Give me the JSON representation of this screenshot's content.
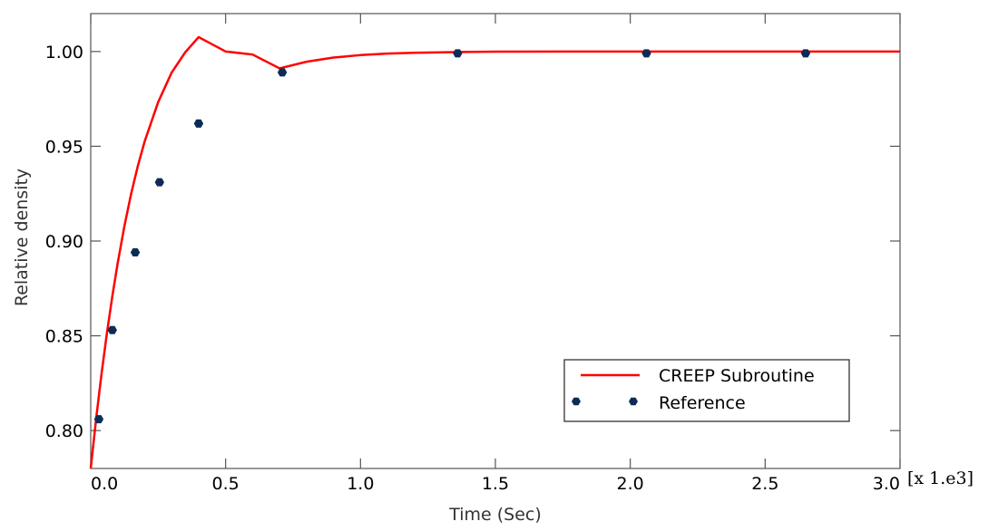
{
  "chart_data": {
    "type": "line",
    "xlabel": "Time (Sec)",
    "ylabel": "Relative density",
    "x_scale_label": "[x 1.e3]",
    "xlim": [
      0,
      3.0
    ],
    "ylim": [
      0.78,
      1.02
    ],
    "x_ticks": [
      0.0,
      0.5,
      1.0,
      1.5,
      2.0,
      2.5,
      3.0
    ],
    "x_tick_labels": [
      "0.0",
      "0.5",
      "1.0",
      "1.5",
      "2.0",
      "2.5",
      "3.0"
    ],
    "y_ticks": [
      0.8,
      0.85,
      0.9,
      0.95,
      1.0
    ],
    "y_tick_labels": [
      "0.80",
      "0.85",
      "0.90",
      "0.95",
      "1.00"
    ],
    "legend_position": "bottom-right",
    "series": [
      {
        "name": "CREEP Subroutine",
        "kind": "line",
        "color": "#ff0000",
        "x": [
          0.0,
          0.02,
          0.04,
          0.06,
          0.08,
          0.1,
          0.125,
          0.15,
          0.175,
          0.2,
          0.25,
          0.3,
          0.35,
          0.4,
          0.5,
          0.6,
          0.7,
          0.8,
          0.9,
          1.0,
          1.1,
          1.2,
          1.35,
          1.5,
          1.75,
          2.0,
          2.5,
          3.0
        ],
        "y": [
          0.78,
          0.8062,
          0.8299,
          0.8514,
          0.8708,
          0.8884,
          0.908,
          0.9251,
          0.9398,
          0.9526,
          0.9733,
          0.9889,
          0.9995,
          1.0076,
          1.0,
          0.9984,
          0.9911,
          0.9946,
          0.9968,
          0.9981,
          0.9989,
          0.9993,
          0.9997,
          0.9999,
          1.0,
          1.0,
          1.0,
          1.0
        ]
      },
      {
        "name": "Reference",
        "kind": "scatter",
        "color": "#0d2c55",
        "x": [
          0.03,
          0.08,
          0.165,
          0.255,
          0.4,
          0.71,
          1.36,
          2.06,
          2.65
        ],
        "y": [
          0.806,
          0.853,
          0.894,
          0.931,
          0.962,
          0.989,
          0.999,
          0.999,
          0.999
        ]
      }
    ]
  }
}
